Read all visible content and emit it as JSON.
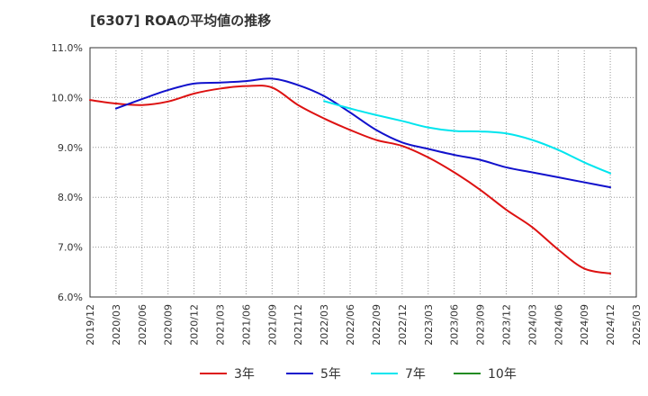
{
  "title": "[6307]  ROAの平均値の推移",
  "chart_data": {
    "type": "line",
    "title": "[6307]  ROAの平均値の推移",
    "xlabel": "",
    "ylabel": "",
    "ylim": [
      6.0,
      11.0
    ],
    "y_unit": "%",
    "y_ticks": [
      "6.0%",
      "7.0%",
      "8.0%",
      "9.0%",
      "10.0%",
      "11.0%"
    ],
    "x_range": [
      "2019/12",
      "2025/03"
    ],
    "x_ticks": [
      "2019/12",
      "2020/03",
      "2020/06",
      "2020/09",
      "2020/12",
      "2021/03",
      "2021/06",
      "2021/09",
      "2021/12",
      "2022/03",
      "2022/06",
      "2022/09",
      "2022/12",
      "2023/03",
      "2023/06",
      "2023/09",
      "2023/12",
      "2024/03",
      "2024/06",
      "2024/09",
      "2024/12",
      "2025/03"
    ],
    "grid": true,
    "legend_position": "bottom",
    "series": [
      {
        "name": "3年",
        "color": "#dd1111",
        "points": [
          [
            "2019/12",
            9.95
          ],
          [
            "2020/03",
            9.88
          ],
          [
            "2020/06",
            9.85
          ],
          [
            "2020/09",
            9.92
          ],
          [
            "2020/12",
            10.08
          ],
          [
            "2021/03",
            10.18
          ],
          [
            "2021/06",
            10.23
          ],
          [
            "2021/09",
            10.2
          ],
          [
            "2021/12",
            9.85
          ],
          [
            "2022/03",
            9.58
          ],
          [
            "2022/06",
            9.35
          ],
          [
            "2022/09",
            9.15
          ],
          [
            "2022/12",
            9.03
          ],
          [
            "2023/03",
            8.8
          ],
          [
            "2023/06",
            8.5
          ],
          [
            "2023/09",
            8.15
          ],
          [
            "2023/12",
            7.75
          ],
          [
            "2024/03",
            7.4
          ],
          [
            "2024/06",
            6.95
          ],
          [
            "2024/09",
            6.57
          ],
          [
            "2024/12",
            6.47
          ]
        ]
      },
      {
        "name": "5年",
        "color": "#1111cc",
        "points": [
          [
            "2020/03",
            9.78
          ],
          [
            "2020/06",
            9.97
          ],
          [
            "2020/09",
            10.15
          ],
          [
            "2020/12",
            10.28
          ],
          [
            "2021/03",
            10.3
          ],
          [
            "2021/06",
            10.33
          ],
          [
            "2021/09",
            10.38
          ],
          [
            "2021/12",
            10.25
          ],
          [
            "2022/03",
            10.03
          ],
          [
            "2022/06",
            9.7
          ],
          [
            "2022/09",
            9.35
          ],
          [
            "2022/12",
            9.1
          ],
          [
            "2023/03",
            8.97
          ],
          [
            "2023/06",
            8.85
          ],
          [
            "2023/09",
            8.75
          ],
          [
            "2023/12",
            8.6
          ],
          [
            "2024/03",
            8.5
          ],
          [
            "2024/06",
            8.4
          ],
          [
            "2024/09",
            8.3
          ],
          [
            "2024/12",
            8.2
          ]
        ]
      },
      {
        "name": "7年",
        "color": "#00e5ee",
        "points": [
          [
            "2022/03",
            9.93
          ],
          [
            "2022/06",
            9.78
          ],
          [
            "2022/09",
            9.65
          ],
          [
            "2022/12",
            9.53
          ],
          [
            "2023/03",
            9.4
          ],
          [
            "2023/06",
            9.33
          ],
          [
            "2023/09",
            9.32
          ],
          [
            "2023/12",
            9.28
          ],
          [
            "2024/03",
            9.15
          ],
          [
            "2024/06",
            8.95
          ],
          [
            "2024/09",
            8.7
          ],
          [
            "2024/12",
            8.48
          ]
        ]
      },
      {
        "name": "10年",
        "color": "#228b22",
        "points": []
      }
    ]
  }
}
